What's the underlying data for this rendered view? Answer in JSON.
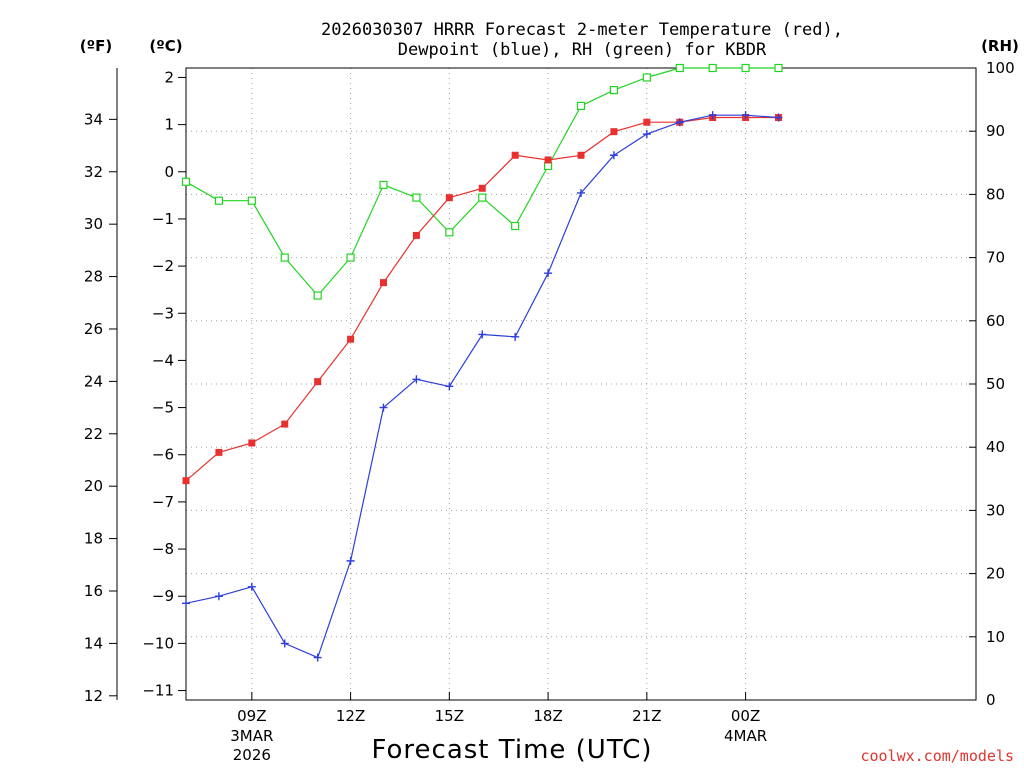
{
  "chart_data": {
    "type": "line",
    "title_line1": "2026030307 HRRR Forecast 2-meter Temperature (red),",
    "title_line2": "Dewpoint (blue), RH (green) for KBDR",
    "xlabel": "Forecast Time (UTC)",
    "left_f_label": "(ºF)",
    "left_c_label": "(ºC)",
    "right_label": "(RH)",
    "credit": "coolwx.com/models",
    "x_range": [
      7,
      31
    ],
    "y_c_range": [
      -11.2,
      2.2
    ],
    "y_rh_range": [
      0,
      100
    ],
    "f_ticks": [
      "12",
      "14",
      "16",
      "18",
      "20",
      "22",
      "24",
      "26",
      "28",
      "30",
      "32",
      "34"
    ],
    "c_ticks": [
      "−11",
      "−10",
      "−9",
      "−8",
      "−7",
      "−6",
      "−5",
      "−4",
      "−3",
      "−2",
      "−1",
      "0",
      "1",
      "2"
    ],
    "rh_ticks": [
      "0",
      "10",
      "20",
      "30",
      "40",
      "50",
      "60",
      "70",
      "80",
      "90",
      "100"
    ],
    "x_ticks": [
      {
        "hour": 9,
        "label": "09Z",
        "sub1": "3MAR",
        "sub2": "2026"
      },
      {
        "hour": 12,
        "label": "12Z",
        "sub1": "",
        "sub2": ""
      },
      {
        "hour": 15,
        "label": "15Z",
        "sub1": "",
        "sub2": ""
      },
      {
        "hour": 18,
        "label": "18Z",
        "sub1": "",
        "sub2": ""
      },
      {
        "hour": 21,
        "label": "21Z",
        "sub1": "",
        "sub2": ""
      },
      {
        "hour": 24,
        "label": "00Z",
        "sub1": "4MAR",
        "sub2": ""
      }
    ],
    "x": [
      7,
      8,
      9,
      10,
      11,
      12,
      13,
      14,
      15,
      16,
      17,
      18,
      19,
      20,
      21,
      22,
      23,
      24,
      25
    ],
    "series": [
      {
        "name": "Temperature",
        "unit": "C",
        "color": "#e8302e",
        "marker": "filled-square",
        "values": [
          -6.55,
          -5.95,
          -5.75,
          -5.35,
          -4.45,
          -3.55,
          -2.35,
          -1.35,
          -0.55,
          -0.35,
          0.35,
          0.25,
          0.35,
          0.85,
          1.05,
          1.05,
          1.15,
          1.15,
          1.15
        ]
      },
      {
        "name": "Dewpoint",
        "unit": "C",
        "color": "#2d3fdb",
        "marker": "plus",
        "values": [
          -9.15,
          -9.0,
          -8.8,
          -10.0,
          -10.3,
          -8.25,
          -5.0,
          -4.4,
          -4.55,
          -3.45,
          -3.5,
          -2.15,
          -0.45,
          0.35,
          0.8,
          1.05,
          1.2,
          1.2,
          1.15
        ]
      },
      {
        "name": "RH",
        "unit": "%",
        "color": "#22d422",
        "marker": "open-square",
        "values": [
          82,
          79,
          79,
          70,
          64,
          70,
          81.5,
          79.5,
          74,
          79.5,
          75,
          84.5,
          94,
          96.5,
          98.5,
          100,
          100,
          100,
          100
        ]
      }
    ]
  }
}
